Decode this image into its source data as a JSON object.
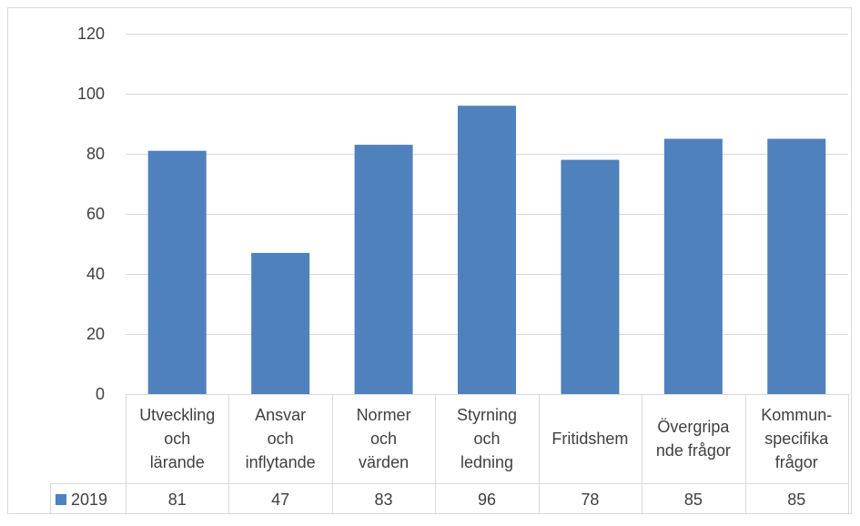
{
  "chart_data": {
    "type": "bar",
    "title": "",
    "xlabel": "",
    "ylabel": "",
    "ylim": [
      0,
      120
    ],
    "yticks": [
      0,
      20,
      40,
      60,
      80,
      100,
      120
    ],
    "grid": true,
    "data_table": true,
    "categories": [
      [
        "Utveckling",
        "och",
        "lärande"
      ],
      [
        "Ansvar",
        "och",
        "inflytande"
      ],
      [
        "Normer",
        "och",
        "värden"
      ],
      [
        "Styrning",
        "och",
        "ledning"
      ],
      [
        "Fritidshem"
      ],
      [
        "Övergripa",
        "nde frågor"
      ],
      [
        "Kommun-",
        "specifika",
        "frågor"
      ]
    ],
    "series": [
      {
        "name": "2019",
        "color": "#4f81bd",
        "values": [
          81,
          47,
          83,
          96,
          78,
          85,
          85
        ]
      }
    ]
  }
}
